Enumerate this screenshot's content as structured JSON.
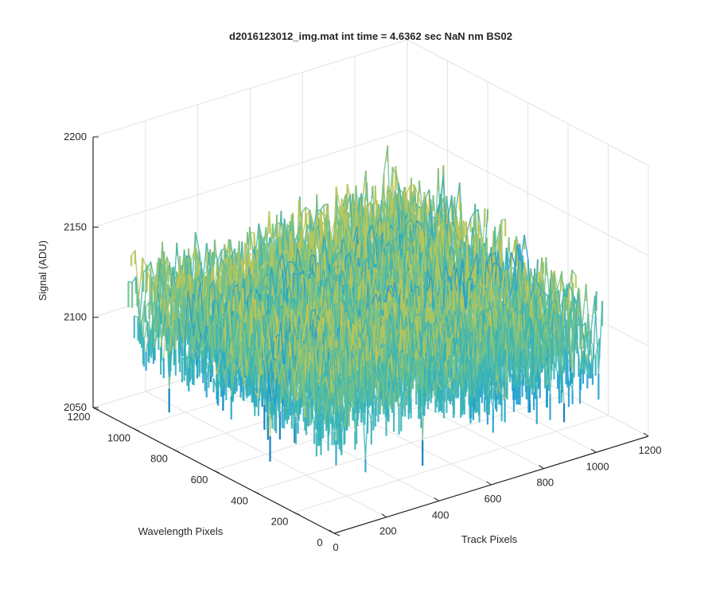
{
  "chart_data": {
    "type": "surface",
    "title": "d2016123012_img.mat int time = 4.6362 sec  NaN nm BS02",
    "xlabel": "Track Pixels",
    "ylabel": "Wavelength Pixels",
    "zlabel": "Signal (ADU)",
    "xlim": [
      0,
      1200
    ],
    "ylim": [
      0,
      1200
    ],
    "zlim": [
      2050,
      2200
    ],
    "x_ticks": [
      "0",
      "200",
      "400",
      "600",
      "800",
      "1000",
      "1200"
    ],
    "y_ticks": [
      "0",
      "200",
      "400",
      "600",
      "800",
      "1000",
      "1200"
    ],
    "z_ticks": [
      "2050",
      "2100",
      "2150",
      "2200"
    ],
    "surface": {
      "x_extent": [
        0,
        1024
      ],
      "y_extent": [
        0,
        1024
      ],
      "mean_signal": 2122,
      "noise_range": [
        2060,
        2175
      ],
      "colormap": [
        "#0072BD",
        "#1F9FD0",
        "#36B3B8",
        "#6CC08E",
        "#B7C55A",
        "#F0BE3A",
        "#F9D33C"
      ]
    },
    "grid": true
  }
}
